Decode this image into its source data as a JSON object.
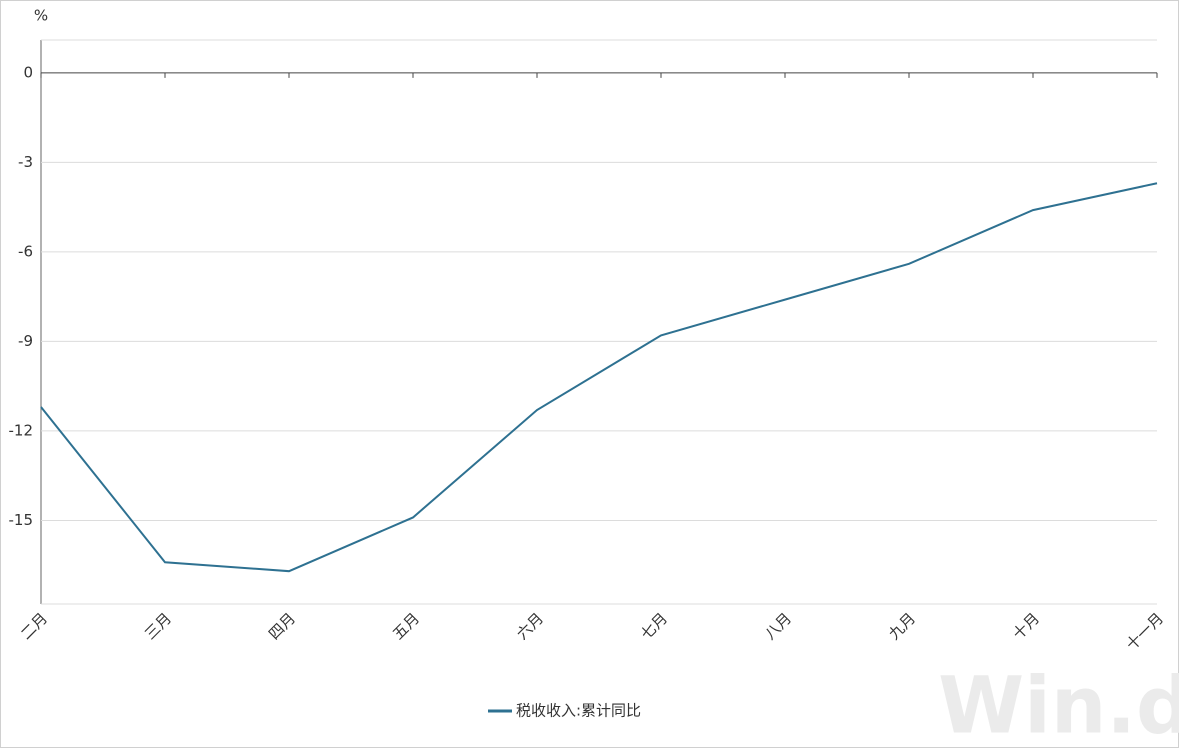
{
  "chart_data": {
    "type": "line",
    "y_unit": "%",
    "categories": [
      "二月",
      "三月",
      "四月",
      "五月",
      "六月",
      "七月",
      "八月",
      "九月",
      "十月",
      "十一月"
    ],
    "series": [
      {
        "name": "税收收入:累计同比",
        "color": "#2e7191",
        "values": [
          -11.2,
          -16.4,
          -16.7,
          -14.9,
          -11.3,
          -8.8,
          -7.6,
          -6.4,
          -4.6,
          -3.7
        ]
      }
    ],
    "ylim": [
      -17.8,
      1.1
    ],
    "yticks": [
      0,
      -3,
      -6,
      -9,
      -12,
      -15
    ],
    "grid": true,
    "legend": "bottom",
    "watermark": "Win.d"
  }
}
